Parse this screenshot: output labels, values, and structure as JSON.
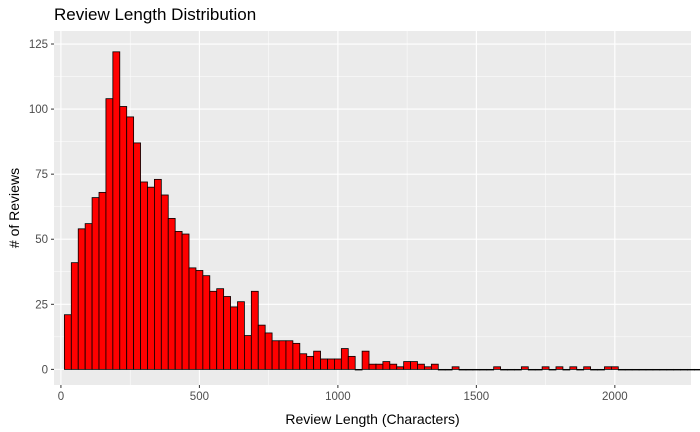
{
  "chart_data": {
    "type": "bar",
    "title": "Review Length Distribution",
    "xlabel": "Review Length (Characters)",
    "ylabel": "# of Reviews",
    "xlim": [
      -25,
      2275
    ],
    "ylim": [
      -6,
      130
    ],
    "x_ticks": [
      0,
      500,
      1000,
      1500,
      2000
    ],
    "x_tick_labels": [
      "0",
      "500",
      "1000",
      "1500",
      "2000"
    ],
    "y_ticks": [
      0,
      25,
      50,
      75,
      100,
      125
    ],
    "y_tick_labels": [
      "0",
      "25",
      "50",
      "75",
      "100",
      "125"
    ],
    "grid": true,
    "bin_width": 25,
    "bin_start": 12.5,
    "values": [
      21,
      41,
      54,
      56,
      66,
      68,
      104,
      122,
      101,
      97,
      87,
      72,
      70,
      73,
      67,
      58,
      53,
      52,
      39,
      38,
      36,
      30,
      31,
      28,
      24,
      26,
      13,
      30,
      17,
      14,
      11,
      11,
      11,
      10,
      6,
      5,
      7,
      4,
      4,
      4,
      8,
      5,
      0,
      7,
      2,
      2,
      3,
      2,
      1,
      3,
      3,
      2,
      1,
      2,
      0,
      0,
      1,
      0,
      0,
      0,
      0,
      0,
      1,
      0,
      0,
      0,
      1,
      0,
      0,
      1,
      0,
      1,
      0,
      1,
      0,
      1,
      0,
      0,
      1,
      1,
      0,
      0,
      0,
      0,
      0,
      0,
      0,
      0,
      0,
      0,
      0,
      0,
      0,
      1,
      1
    ],
    "bar_fill": "#ff0000",
    "bar_stroke": "#000000",
    "panel_background": "#ebebeb",
    "grid_color": "#ffffff"
  }
}
